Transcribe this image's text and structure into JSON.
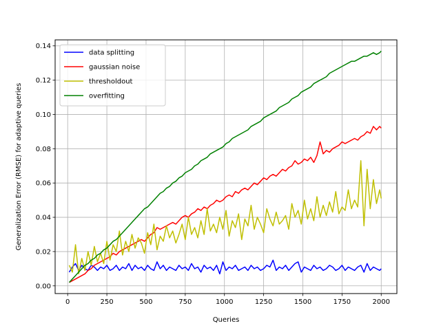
{
  "chart_data": {
    "type": "line",
    "title": "",
    "xlabel": "Queries",
    "ylabel": "Generalization Error (RMSE) for adaptive queries",
    "xlim": [
      -80,
      2100
    ],
    "ylim": [
      -0.0045,
      0.1435
    ],
    "xticks": [
      0,
      250,
      500,
      750,
      1000,
      1250,
      1500,
      1750,
      2000
    ],
    "yticks": [
      0.0,
      0.02,
      0.04,
      0.06,
      0.08,
      0.1,
      0.12,
      0.14
    ],
    "xtick_labels": [
      "0",
      "250",
      "500",
      "750",
      "1000",
      "1250",
      "1500",
      "1750",
      "2000"
    ],
    "ytick_labels": [
      "0.00",
      "0.02",
      "0.04",
      "0.06",
      "0.08",
      "0.10",
      "0.12",
      "0.14"
    ],
    "grid": true,
    "legend_position": "top-left",
    "series": [
      {
        "name": "data splitting",
        "color": "#0000ff",
        "x": [
          10,
          30,
          50,
          70,
          90,
          110,
          130,
          150,
          170,
          190,
          210,
          230,
          250,
          270,
          290,
          310,
          330,
          350,
          370,
          390,
          410,
          430,
          450,
          470,
          490,
          510,
          530,
          550,
          570,
          590,
          610,
          630,
          650,
          670,
          690,
          710,
          730,
          750,
          770,
          790,
          810,
          830,
          850,
          870,
          890,
          910,
          930,
          950,
          970,
          990,
          1010,
          1030,
          1050,
          1070,
          1090,
          1110,
          1130,
          1150,
          1170,
          1190,
          1210,
          1230,
          1250,
          1270,
          1290,
          1310,
          1330,
          1350,
          1370,
          1390,
          1410,
          1430,
          1450,
          1470,
          1490,
          1510,
          1530,
          1550,
          1570,
          1590,
          1610,
          1630,
          1650,
          1670,
          1690,
          1710,
          1730,
          1750,
          1770,
          1790,
          1810,
          1830,
          1850,
          1870,
          1890,
          1910,
          1930,
          1950,
          1970,
          1990,
          2000
        ],
        "y": [
          0.008,
          0.011,
          0.013,
          0.009,
          0.012,
          0.01,
          0.009,
          0.012,
          0.011,
          0.009,
          0.011,
          0.01,
          0.012,
          0.009,
          0.01,
          0.012,
          0.009,
          0.011,
          0.01,
          0.013,
          0.009,
          0.012,
          0.01,
          0.011,
          0.009,
          0.012,
          0.01,
          0.009,
          0.014,
          0.01,
          0.012,
          0.009,
          0.011,
          0.01,
          0.009,
          0.012,
          0.01,
          0.011,
          0.009,
          0.013,
          0.01,
          0.011,
          0.008,
          0.012,
          0.01,
          0.011,
          0.009,
          0.012,
          0.007,
          0.014,
          0.009,
          0.011,
          0.01,
          0.012,
          0.009,
          0.01,
          0.011,
          0.009,
          0.012,
          0.01,
          0.011,
          0.009,
          0.01,
          0.012,
          0.011,
          0.015,
          0.009,
          0.011,
          0.01,
          0.012,
          0.009,
          0.011,
          0.013,
          0.014,
          0.008,
          0.011,
          0.01,
          0.009,
          0.012,
          0.01,
          0.011,
          0.009,
          0.01,
          0.012,
          0.011,
          0.009,
          0.01,
          0.012,
          0.009,
          0.011,
          0.01,
          0.009,
          0.011,
          0.012,
          0.008,
          0.013,
          0.009,
          0.011,
          0.01,
          0.009,
          0.01
        ]
      },
      {
        "name": "gaussian noise",
        "color": "#ff0000",
        "x": [
          10,
          30,
          50,
          70,
          90,
          110,
          130,
          150,
          170,
          190,
          210,
          230,
          250,
          270,
          290,
          310,
          330,
          350,
          370,
          390,
          410,
          430,
          450,
          470,
          490,
          510,
          530,
          550,
          570,
          590,
          610,
          630,
          650,
          670,
          690,
          710,
          730,
          750,
          770,
          790,
          810,
          830,
          850,
          870,
          890,
          910,
          930,
          950,
          970,
          990,
          1010,
          1030,
          1050,
          1070,
          1090,
          1110,
          1130,
          1150,
          1170,
          1190,
          1210,
          1230,
          1250,
          1270,
          1290,
          1310,
          1330,
          1350,
          1370,
          1390,
          1410,
          1430,
          1450,
          1470,
          1490,
          1510,
          1530,
          1550,
          1570,
          1590,
          1610,
          1630,
          1650,
          1670,
          1690,
          1710,
          1730,
          1750,
          1770,
          1790,
          1810,
          1830,
          1850,
          1870,
          1890,
          1910,
          1930,
          1950,
          1970,
          1990,
          2000
        ],
        "y": [
          0.002,
          0.003,
          0.004,
          0.005,
          0.006,
          0.007,
          0.009,
          0.01,
          0.012,
          0.013,
          0.014,
          0.015,
          0.016,
          0.017,
          0.019,
          0.018,
          0.02,
          0.021,
          0.022,
          0.023,
          0.024,
          0.025,
          0.026,
          0.027,
          0.026,
          0.028,
          0.03,
          0.031,
          0.034,
          0.033,
          0.034,
          0.035,
          0.036,
          0.037,
          0.036,
          0.038,
          0.04,
          0.041,
          0.04,
          0.042,
          0.043,
          0.045,
          0.044,
          0.046,
          0.045,
          0.047,
          0.048,
          0.05,
          0.049,
          0.05,
          0.052,
          0.053,
          0.052,
          0.055,
          0.054,
          0.056,
          0.057,
          0.056,
          0.058,
          0.06,
          0.059,
          0.061,
          0.063,
          0.062,
          0.064,
          0.065,
          0.064,
          0.066,
          0.068,
          0.067,
          0.069,
          0.07,
          0.073,
          0.071,
          0.072,
          0.074,
          0.073,
          0.075,
          0.072,
          0.076,
          0.084,
          0.077,
          0.079,
          0.078,
          0.08,
          0.081,
          0.082,
          0.084,
          0.083,
          0.084,
          0.085,
          0.086,
          0.085,
          0.087,
          0.088,
          0.09,
          0.089,
          0.093,
          0.091,
          0.093,
          0.092
        ]
      },
      {
        "name": "thresholdout",
        "color": "#bfbf00",
        "x": [
          10,
          30,
          50,
          70,
          90,
          110,
          130,
          150,
          170,
          190,
          210,
          230,
          250,
          270,
          290,
          310,
          330,
          350,
          370,
          390,
          410,
          430,
          450,
          470,
          490,
          510,
          530,
          550,
          570,
          590,
          610,
          630,
          650,
          670,
          690,
          710,
          730,
          750,
          770,
          790,
          810,
          830,
          850,
          870,
          890,
          910,
          930,
          950,
          970,
          990,
          1010,
          1030,
          1050,
          1070,
          1090,
          1110,
          1130,
          1150,
          1170,
          1190,
          1210,
          1230,
          1250,
          1270,
          1290,
          1310,
          1330,
          1350,
          1370,
          1390,
          1410,
          1430,
          1450,
          1470,
          1490,
          1510,
          1530,
          1550,
          1570,
          1590,
          1610,
          1630,
          1650,
          1670,
          1690,
          1710,
          1730,
          1750,
          1770,
          1790,
          1810,
          1830,
          1850,
          1870,
          1890,
          1910,
          1930,
          1950,
          1970,
          1990,
          2000
        ],
        "y": [
          0.012,
          0.008,
          0.024,
          0.007,
          0.016,
          0.009,
          0.02,
          0.012,
          0.023,
          0.014,
          0.019,
          0.013,
          0.026,
          0.015,
          0.024,
          0.02,
          0.032,
          0.018,
          0.026,
          0.02,
          0.03,
          0.022,
          0.028,
          0.025,
          0.019,
          0.031,
          0.024,
          0.036,
          0.021,
          0.029,
          0.026,
          0.035,
          0.028,
          0.032,
          0.025,
          0.03,
          0.036,
          0.027,
          0.04,
          0.03,
          0.034,
          0.028,
          0.038,
          0.03,
          0.045,
          0.032,
          0.036,
          0.031,
          0.04,
          0.033,
          0.044,
          0.029,
          0.038,
          0.034,
          0.042,
          0.027,
          0.039,
          0.035,
          0.047,
          0.033,
          0.04,
          0.036,
          0.031,
          0.045,
          0.039,
          0.035,
          0.043,
          0.036,
          0.038,
          0.041,
          0.033,
          0.048,
          0.04,
          0.044,
          0.036,
          0.05,
          0.039,
          0.045,
          0.038,
          0.052,
          0.04,
          0.047,
          0.041,
          0.049,
          0.043,
          0.055,
          0.042,
          0.046,
          0.044,
          0.056,
          0.045,
          0.05,
          0.046,
          0.073,
          0.035,
          0.068,
          0.045,
          0.062,
          0.048,
          0.056,
          0.051
        ]
      },
      {
        "name": "overfitting",
        "color": "#008000",
        "x": [
          10,
          30,
          50,
          70,
          90,
          110,
          130,
          150,
          170,
          190,
          210,
          230,
          250,
          270,
          290,
          310,
          330,
          350,
          370,
          390,
          410,
          430,
          450,
          470,
          490,
          510,
          530,
          550,
          570,
          590,
          610,
          630,
          650,
          670,
          690,
          710,
          730,
          750,
          770,
          790,
          810,
          830,
          850,
          870,
          890,
          910,
          930,
          950,
          970,
          990,
          1010,
          1030,
          1050,
          1070,
          1090,
          1110,
          1130,
          1150,
          1170,
          1190,
          1210,
          1230,
          1250,
          1270,
          1290,
          1310,
          1330,
          1350,
          1370,
          1390,
          1410,
          1430,
          1450,
          1470,
          1490,
          1510,
          1530,
          1550,
          1570,
          1590,
          1610,
          1630,
          1650,
          1670,
          1690,
          1710,
          1730,
          1750,
          1770,
          1790,
          1810,
          1830,
          1850,
          1870,
          1890,
          1910,
          1930,
          1950,
          1970,
          1990,
          2000
        ],
        "y": [
          0.002,
          0.004,
          0.006,
          0.008,
          0.01,
          0.012,
          0.013,
          0.015,
          0.016,
          0.018,
          0.019,
          0.021,
          0.022,
          0.024,
          0.026,
          0.027,
          0.029,
          0.031,
          0.033,
          0.035,
          0.037,
          0.039,
          0.041,
          0.043,
          0.045,
          0.046,
          0.048,
          0.05,
          0.052,
          0.054,
          0.055,
          0.057,
          0.058,
          0.06,
          0.061,
          0.063,
          0.064,
          0.066,
          0.067,
          0.068,
          0.07,
          0.071,
          0.073,
          0.074,
          0.075,
          0.077,
          0.078,
          0.079,
          0.08,
          0.081,
          0.083,
          0.084,
          0.086,
          0.087,
          0.088,
          0.089,
          0.09,
          0.091,
          0.093,
          0.094,
          0.095,
          0.096,
          0.098,
          0.099,
          0.1,
          0.101,
          0.102,
          0.104,
          0.105,
          0.106,
          0.107,
          0.109,
          0.11,
          0.111,
          0.113,
          0.114,
          0.115,
          0.116,
          0.118,
          0.119,
          0.12,
          0.121,
          0.122,
          0.124,
          0.125,
          0.126,
          0.127,
          0.128,
          0.129,
          0.13,
          0.131,
          0.131,
          0.132,
          0.133,
          0.134,
          0.134,
          0.135,
          0.136,
          0.135,
          0.136,
          0.137
        ]
      }
    ]
  }
}
